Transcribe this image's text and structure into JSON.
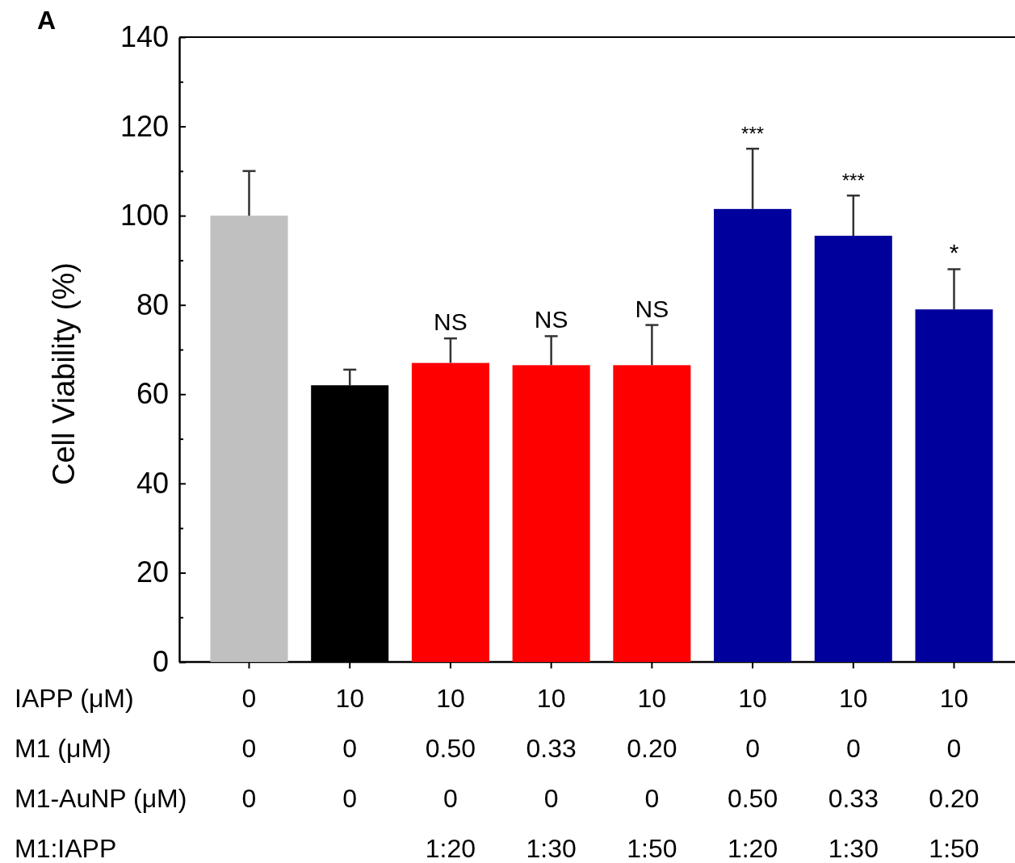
{
  "chart_data": {
    "type": "bar",
    "ylabel": "Cell Viability (%)",
    "categories": [
      "0\n0\n0\n",
      "10\n0\n0\n",
      "10\n0.50\n0\n1:20",
      "10\n0.33\n0\n1:30",
      "10\n0.20\n0\n1:50",
      "10\n0\n0.50\n1:20",
      "10\n0\n0.33\n1:30",
      "10\n0\n0.20\n1:50"
    ],
    "values": [
      100,
      62,
      67,
      66.5,
      66.5,
      101.5,
      95.5,
      79
    ],
    "colors": [
      "#c0c0c0",
      "#000000",
      "#ff0000",
      "#ff0000",
      "#ff0000",
      "#00009c",
      "#00009c",
      "#00009c"
    ],
    "errors": [
      [
        100,
        110
      ],
      [
        62,
        65.5
      ],
      [
        67,
        72.5
      ],
      [
        66.5,
        73
      ],
      [
        66.5,
        75.5
      ],
      [
        101.5,
        115
      ],
      [
        95.5,
        104.5
      ],
      [
        79,
        88
      ]
    ],
    "ylim": [
      0,
      140
    ],
    "yticks": [
      0,
      {
        "value": 10,
        "label": null
      },
      20,
      {
        "value": 30,
        "label": null
      },
      40,
      {
        "value": 50,
        "label": null
      },
      60,
      {
        "value": 70,
        "label": null
      },
      80,
      {
        "value": 90,
        "label": null
      },
      100,
      {
        "value": 110,
        "label": null
      },
      120,
      {
        "value": 130,
        "label": null
      },
      140
    ],
    "annotations": [
      "A",
      "IAPP (μM)",
      "M1 (μM)",
      "M1-AuNP (μM)",
      "M1:IAPP",
      {
        "text": "NS",
        "x": "10\n0.50\n0\n1:20",
        "y": 72.5
      },
      {
        "text": "NS",
        "x": "10\n0.33\n0\n1:30",
        "y": 73
      },
      {
        "text": "NS",
        "x": "10\n0.20\n0\n1:50",
        "y": 75.5
      },
      {
        "text": "***",
        "x": "10\n0\n0.50\n1:20",
        "y": 115
      },
      {
        "text": "***",
        "x": "10\n0\n0.33\n1:30",
        "y": 104.5
      },
      {
        "text": "*",
        "x": "10\n0\n0.20\n1:50",
        "y": 88
      }
    ]
  }
}
